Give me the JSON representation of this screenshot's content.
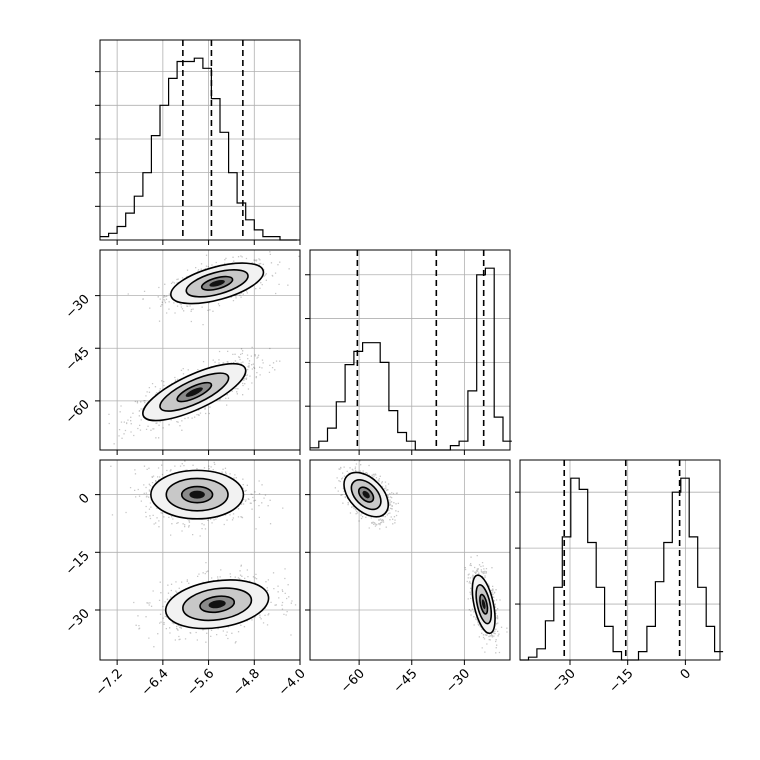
{
  "chart_data": {
    "type": "corner",
    "grid": true,
    "parameters": [
      {
        "range": [
          -7.5,
          -4.0
        ],
        "quantiles": [
          -6.05,
          -5.55,
          -5.0
        ],
        "ticks": [
          -7.2,
          -6.4,
          -5.6,
          -4.8,
          -4.0
        ],
        "tick_labels": [
          "−7.2",
          "−6.4",
          "−5.6",
          "−4.8",
          "−4.0"
        ]
      },
      {
        "range": [
          -74,
          -17
        ],
        "quantiles": [
          -60.5,
          -38.0,
          -24.5
        ],
        "ticks": [
          -60,
          -45,
          -30
        ],
        "tick_labels": [
          "−60",
          "−45",
          "−30"
        ]
      },
      {
        "range": [
          -43,
          9
        ],
        "quantiles": [
          -31.5,
          -15.5,
          -1.5
        ],
        "ticks": [
          -30,
          -15,
          0
        ],
        "tick_labels": [
          "−30",
          "−15",
          "0"
        ]
      }
    ],
    "histograms": [
      {
        "param": 0,
        "bin_edges": [
          -7.5,
          -7.35,
          -7.2,
          -7.05,
          -6.9,
          -6.75,
          -6.6,
          -6.45,
          -6.3,
          -6.15,
          -6.0,
          -5.85,
          -5.7,
          -5.55,
          -5.4,
          -5.25,
          -5.1,
          -4.95,
          -4.8,
          -4.65,
          -4.5,
          -4.35,
          -4.2,
          -4.05
        ],
        "counts": [
          1,
          2,
          4,
          8,
          13,
          20,
          31,
          40,
          48,
          53,
          53,
          54,
          51,
          42,
          32,
          20,
          11,
          6,
          3,
          1,
          1,
          0,
          0
        ]
      },
      {
        "param": 1,
        "bin_edges": [
          -74,
          -71.5,
          -69,
          -66.5,
          -64,
          -61.5,
          -59,
          -56.5,
          -54,
          -51.5,
          -49,
          -46.5,
          -44,
          -41.5,
          -39,
          -36.5,
          -34,
          -31.5,
          -29,
          -26.5,
          -24,
          -21.5,
          -19,
          -16.5
        ],
        "counts": [
          1,
          4,
          10,
          22,
          39,
          45,
          49,
          49,
          40,
          18,
          8,
          4,
          0,
          0,
          0,
          0,
          2,
          4,
          27,
          80,
          83,
          15,
          4
        ]
      },
      {
        "param": 2,
        "bin_edges": [
          -43,
          -40.8,
          -38.6,
          -36.4,
          -34.2,
          -32,
          -29.8,
          -27.6,
          -25.4,
          -23.2,
          -21,
          -18.8,
          -16.6,
          -14.4,
          -12.2,
          -10,
          -7.8,
          -5.6,
          -3.4,
          -1.2,
          1,
          3.2,
          5.4,
          7.6,
          9.8
        ],
        "counts": [
          0,
          1,
          4,
          14,
          26,
          44,
          65,
          61,
          42,
          26,
          12,
          3,
          0,
          0,
          3,
          12,
          28,
          42,
          60,
          65,
          44,
          26,
          12,
          3
        ]
      }
    ],
    "scatter_panels": [
      {
        "x_param": 0,
        "y_param": 1,
        "clusters": [
          {
            "center": [
              -5.45,
              -26.5
            ],
            "spread": [
              0.45,
              3.2
            ],
            "n": 700,
            "correlation": 0.55,
            "contour_radii": [
              0.6,
              1.2,
              1.8
            ]
          },
          {
            "center": [
              -5.85,
              -57.5
            ],
            "spread": [
              0.5,
              4.5
            ],
            "n": 900,
            "correlation": 0.75,
            "contour_radii": [
              0.6,
              1.2,
              1.8
            ]
          }
        ]
      },
      {
        "x_param": 0,
        "y_param": 2,
        "clusters": [
          {
            "center": [
              -5.8,
              0.0
            ],
            "spread": [
              0.45,
              3.5
            ],
            "n": 900,
            "correlation": 0.0,
            "contour_radii": [
              0.6,
              1.2,
              1.8
            ]
          },
          {
            "center": [
              -5.45,
              -28.5
            ],
            "spread": [
              0.5,
              3.5
            ],
            "n": 900,
            "correlation": 0.25,
            "contour_radii": [
              0.6,
              1.2,
              1.8
            ]
          }
        ]
      },
      {
        "x_param": 1,
        "y_param": 2,
        "clusters": [
          {
            "center": [
              -58.0,
              0.0
            ],
            "spread": [
              3.5,
              3.2
            ],
            "n": 800,
            "correlation": -0.45,
            "contour_radii": [
              0.6,
              1.2,
              1.8
            ]
          },
          {
            "center": [
              -24.5,
              -28.5
            ],
            "spread": [
              1.8,
              4.2
            ],
            "n": 800,
            "correlation": -0.5,
            "contour_radii": [
              0.6,
              1.2,
              1.8
            ]
          }
        ]
      }
    ]
  }
}
